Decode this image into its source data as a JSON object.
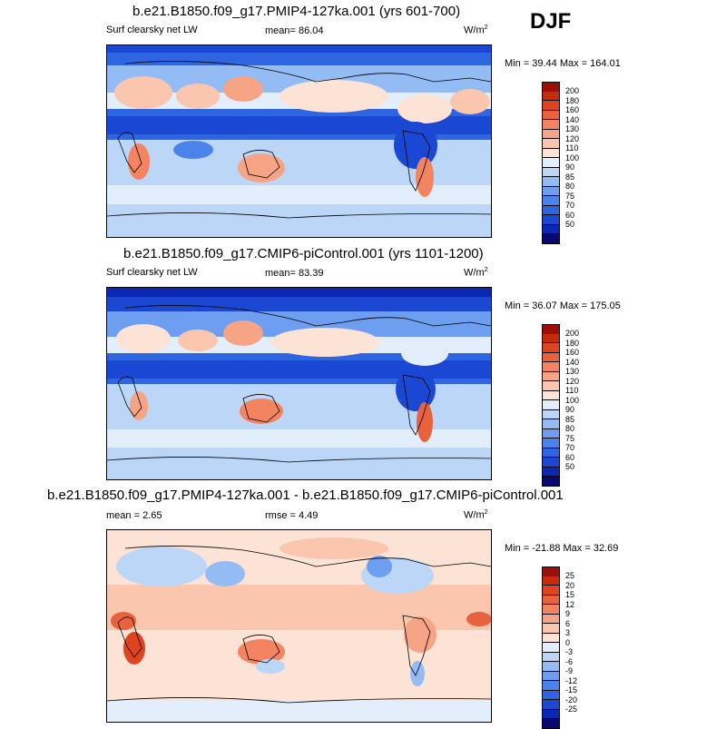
{
  "season": "DJF",
  "colors": {
    "abs_scale": [
      "#08086e",
      "#0a28b4",
      "#1a48d2",
      "#2e66e2",
      "#4a84ea",
      "#6e9ef0",
      "#94bcf4",
      "#bcd6f8",
      "#e2eefb",
      "#fde2d6",
      "#fbc6ae",
      "#f6a486",
      "#f28462",
      "#e8623e",
      "#de4420",
      "#c82a0c",
      "#9a1006"
    ],
    "diff_scale": [
      "#08086e",
      "#0a28b4",
      "#1a48d2",
      "#2e66e2",
      "#4a84ea",
      "#6e9ef0",
      "#94bcf4",
      "#bcd6f8",
      "#e2eefb",
      "#fde2d6",
      "#fbc6ae",
      "#f6a486",
      "#f28462",
      "#e8623e",
      "#de4420",
      "#c82a0c",
      "#9a1006"
    ]
  },
  "panels": [
    {
      "title": "b.e21.B1850.f09_g17.PMIP4-127ka.001 (yrs 601-700)",
      "variable": "Surf clearsky net LW",
      "mean_label": "mean=",
      "mean_value": "86.04",
      "units_base": "W/m",
      "units_exp": "2",
      "minmax": "Min =  39.44 Max = 164.01",
      "colorbar_labels": [
        "200",
        "180",
        "160",
        "140",
        "130",
        "120",
        "110",
        "100",
        "90",
        "85",
        "80",
        "75",
        "70",
        "60",
        "50"
      ]
    },
    {
      "title": "b.e21.B1850.f09_g17.CMIP6-piControl.001 (yrs 1101-1200)",
      "variable": "Surf clearsky net LW",
      "mean_label": "mean=",
      "mean_value": "83.39",
      "units_base": "W/m",
      "units_exp": "2",
      "minmax": "Min =  36.07 Max = 175.05",
      "colorbar_labels": [
        "200",
        "180",
        "160",
        "140",
        "130",
        "120",
        "110",
        "100",
        "90",
        "85",
        "80",
        "75",
        "70",
        "60",
        "50"
      ]
    },
    {
      "title": "b.e21.B1850.f09_g17.PMIP4-127ka.001 - b.e21.B1850.f09_g17.CMIP6-piControl.001",
      "mean_label": "mean =",
      "mean_value": "2.65",
      "rmse_label": "rmse =",
      "rmse_value": "4.49",
      "units_base": "W/m",
      "units_exp": "2",
      "minmax": "Min = -21.88 Max =  32.69",
      "colorbar_labels": [
        "25",
        "20",
        "15",
        "12",
        "9",
        "6",
        "3",
        "0",
        "-3",
        "-6",
        "-9",
        "-12",
        "-15",
        "-20",
        "-25"
      ]
    }
  ]
}
